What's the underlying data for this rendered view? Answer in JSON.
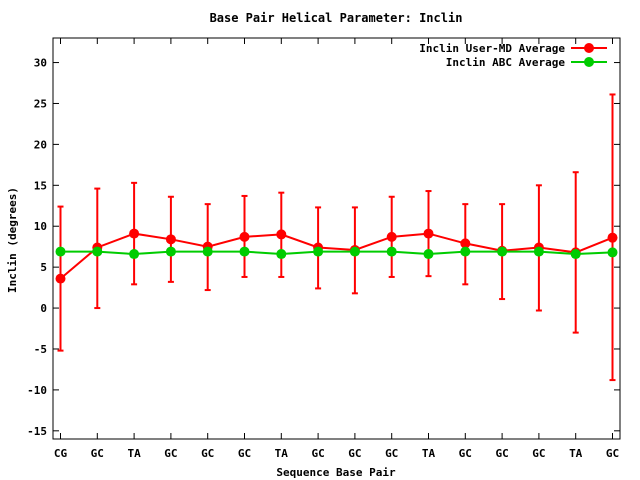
{
  "chart_data": {
    "type": "line",
    "title": "Base Pair Helical Parameter: Inclin",
    "xlabel": "Sequence Base Pair",
    "ylabel": "Inclin (degrees)",
    "categories": [
      "CG",
      "GC",
      "TA",
      "GC",
      "GC",
      "GC",
      "TA",
      "GC",
      "GC",
      "GC",
      "TA",
      "GC",
      "GC",
      "GC",
      "TA",
      "GC"
    ],
    "ylim": [
      -16,
      33
    ],
    "yticks": [
      -15,
      -10,
      -5,
      0,
      5,
      10,
      15,
      20,
      25,
      30
    ],
    "legend_position": "top-right",
    "series": [
      {
        "name": "Inclin User-MD Average",
        "color": "#ff0000",
        "values": [
          3.6,
          7.4,
          9.1,
          8.4,
          7.5,
          8.7,
          9.0,
          7.4,
          7.1,
          8.7,
          9.1,
          7.9,
          7.0,
          7.4,
          6.8,
          8.6
        ],
        "error_low": [
          -5.2,
          0.0,
          2.9,
          3.2,
          2.2,
          3.8,
          3.8,
          2.4,
          1.8,
          3.8,
          3.9,
          2.9,
          1.1,
          -0.3,
          -3.0,
          -8.8
        ],
        "error_high": [
          12.4,
          14.6,
          15.3,
          13.6,
          12.7,
          13.7,
          14.1,
          12.3,
          12.3,
          13.6,
          14.3,
          12.7,
          12.7,
          15.0,
          16.6,
          26.1
        ]
      },
      {
        "name": "Inclin ABC Average",
        "color": "#00cc00",
        "values": [
          6.9,
          6.9,
          6.6,
          6.9,
          6.9,
          6.9,
          6.6,
          6.9,
          6.9,
          6.9,
          6.6,
          6.9,
          6.9,
          6.9,
          6.6,
          6.8
        ]
      }
    ]
  }
}
